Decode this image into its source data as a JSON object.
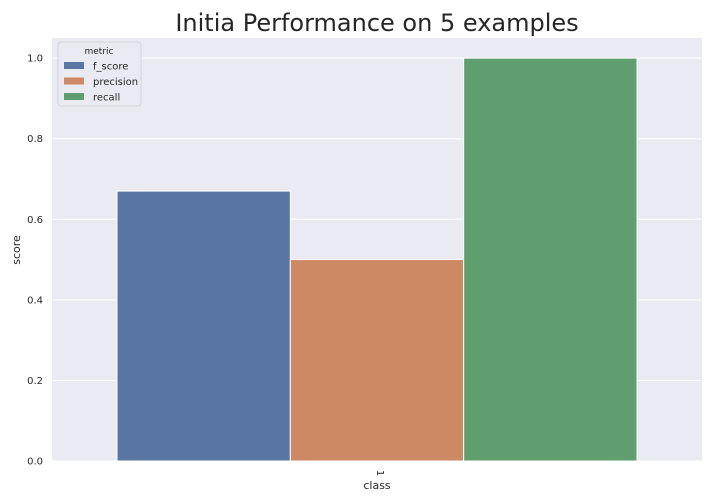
{
  "chart_data": {
    "type": "bar",
    "title": "Initia Performance on 5 examples",
    "xlabel": "class",
    "ylabel": "score",
    "categories": [
      "1"
    ],
    "ylim": [
      0,
      1.05
    ],
    "yticks": [
      "0.0",
      "0.2",
      "0.4",
      "0.6",
      "0.8",
      "1.0"
    ],
    "grid": true,
    "legend": {
      "title": "metric",
      "placement": "top-left",
      "entries": [
        "f_score",
        "precision",
        "recall"
      ]
    },
    "series": [
      {
        "name": "f_score",
        "values": [
          0.67
        ],
        "color": "#5875a4"
      },
      {
        "name": "precision",
        "values": [
          0.5
        ],
        "color": "#cc8963"
      },
      {
        "name": "recall",
        "values": [
          1.0
        ],
        "color": "#5f9e6e"
      }
    ],
    "background_color": "#eaeaf2"
  }
}
